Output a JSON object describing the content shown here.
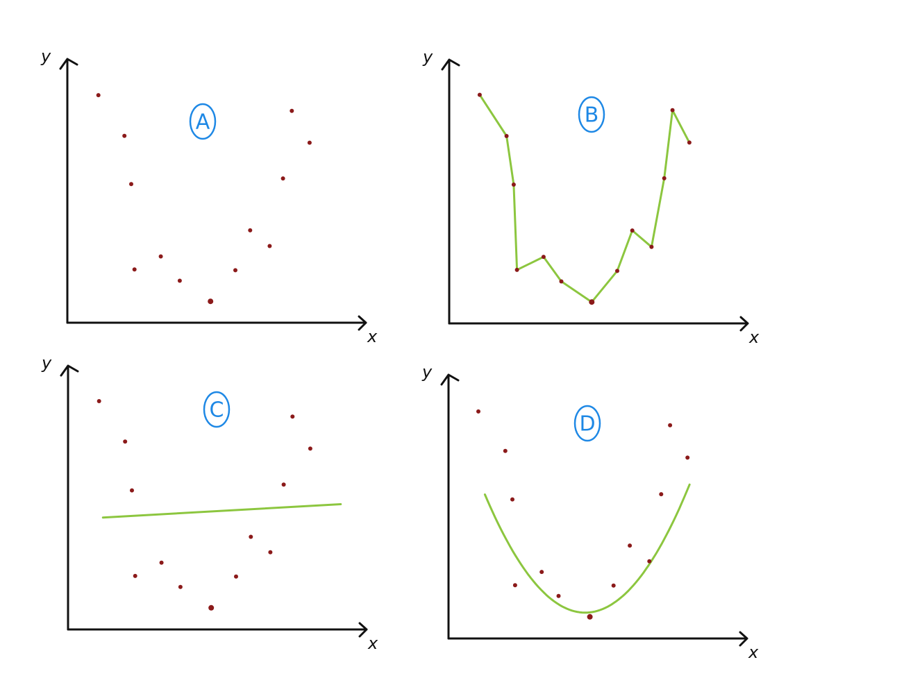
{
  "colors": {
    "axis": "#111111",
    "points": "#8b1a1a",
    "fit": "#8cc63f",
    "badge": "#1e88e5"
  },
  "chart_data": [
    {
      "id": "A",
      "type": "scatter",
      "badge": "A",
      "xlabel": "x",
      "ylabel": "y",
      "xlim": [
        0,
        100
      ],
      "ylim": [
        0,
        100
      ],
      "grid": false,
      "points": [
        {
          "x": 10.5,
          "y": 87.2
        },
        {
          "x": 19.3,
          "y": 71.6
        },
        {
          "x": 21.6,
          "y": 53.1
        },
        {
          "x": 22.7,
          "y": 20.4
        },
        {
          "x": 31.6,
          "y": 25.4
        },
        {
          "x": 38.0,
          "y": 16.1
        },
        {
          "x": 48.4,
          "y": 8.2
        },
        {
          "x": 56.8,
          "y": 20.1
        },
        {
          "x": 61.8,
          "y": 35.4
        },
        {
          "x": 68.4,
          "y": 29.4
        },
        {
          "x": 72.9,
          "y": 55.3
        },
        {
          "x": 75.9,
          "y": 81.2
        },
        {
          "x": 81.9,
          "y": 69.0
        }
      ],
      "fit": null
    },
    {
      "id": "B",
      "type": "line",
      "badge": "B",
      "xlabel": "x",
      "ylabel": "y",
      "xlim": [
        0,
        100
      ],
      "ylim": [
        0,
        100
      ],
      "grid": false,
      "points": [
        {
          "x": 10.3,
          "y": 87.6
        },
        {
          "x": 19.4,
          "y": 71.8
        },
        {
          "x": 21.8,
          "y": 53.2
        },
        {
          "x": 22.9,
          "y": 20.5
        },
        {
          "x": 31.9,
          "y": 25.5
        },
        {
          "x": 37.9,
          "y": 16.1
        },
        {
          "x": 48.2,
          "y": 8.2
        },
        {
          "x": 56.8,
          "y": 20.1
        },
        {
          "x": 61.9,
          "y": 35.6
        },
        {
          "x": 68.4,
          "y": 29.3
        },
        {
          "x": 72.7,
          "y": 55.6
        },
        {
          "x": 75.5,
          "y": 81.7
        },
        {
          "x": 81.2,
          "y": 69.3
        }
      ],
      "fit": {
        "kind": "polyline"
      }
    },
    {
      "id": "C",
      "type": "scatter",
      "badge": "C",
      "xlabel": "x",
      "ylabel": "y",
      "xlim": [
        0,
        100
      ],
      "ylim": [
        0,
        100
      ],
      "grid": false,
      "points": [
        {
          "x": 10.5,
          "y": 87.5
        },
        {
          "x": 19.3,
          "y": 72.0
        },
        {
          "x": 21.6,
          "y": 53.3
        },
        {
          "x": 22.7,
          "y": 20.5
        },
        {
          "x": 31.6,
          "y": 25.6
        },
        {
          "x": 38.0,
          "y": 16.3
        },
        {
          "x": 48.4,
          "y": 8.3
        },
        {
          "x": 56.8,
          "y": 20.3
        },
        {
          "x": 61.8,
          "y": 35.5
        },
        {
          "x": 68.4,
          "y": 29.6
        },
        {
          "x": 72.9,
          "y": 55.5
        },
        {
          "x": 75.9,
          "y": 81.6
        },
        {
          "x": 81.9,
          "y": 69.3
        }
      ],
      "fit": {
        "kind": "linear",
        "x": [
          11.8,
          92.2
        ],
        "y": [
          42.9,
          48.0
        ]
      }
    },
    {
      "id": "D",
      "type": "scatter",
      "badge": "D",
      "xlabel": "x",
      "ylabel": "y",
      "xlim": [
        0,
        100
      ],
      "ylim": [
        0,
        100
      ],
      "grid": false,
      "points": [
        {
          "x": 10.1,
          "y": 87.0
        },
        {
          "x": 19.2,
          "y": 71.9
        },
        {
          "x": 21.6,
          "y": 53.3
        },
        {
          "x": 22.5,
          "y": 20.4
        },
        {
          "x": 31.5,
          "y": 25.5
        },
        {
          "x": 37.2,
          "y": 16.3
        },
        {
          "x": 47.8,
          "y": 8.3
        },
        {
          "x": 55.8,
          "y": 20.3
        },
        {
          "x": 61.3,
          "y": 35.6
        },
        {
          "x": 67.9,
          "y": 29.6
        },
        {
          "x": 71.9,
          "y": 55.3
        },
        {
          "x": 74.9,
          "y": 81.7
        },
        {
          "x": 80.8,
          "y": 69.3
        }
      ],
      "fit": {
        "kind": "quadratic",
        "x_range": [
          12.3,
          81.5
        ],
        "a": 0.0394,
        "h": 46.2,
        "k": 9.9
      }
    }
  ]
}
